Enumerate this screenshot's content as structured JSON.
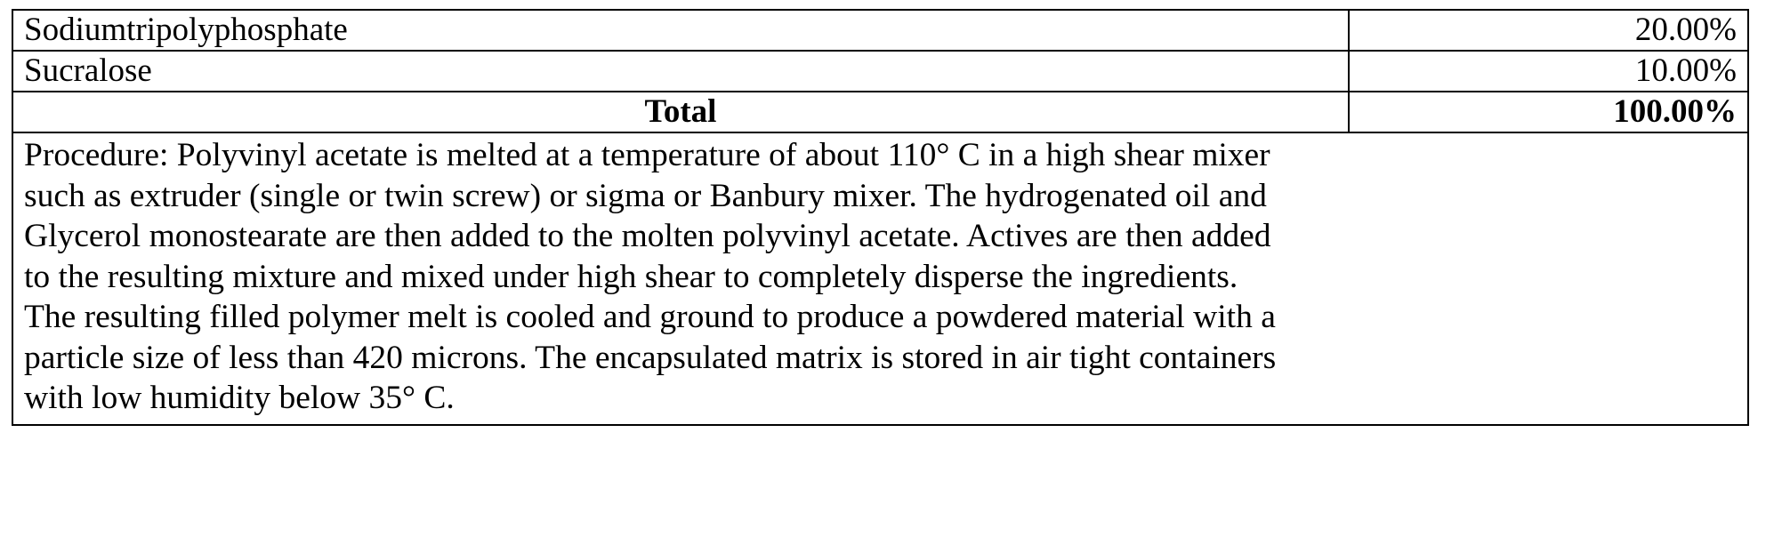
{
  "table": {
    "rows": [
      {
        "ingredient": "Sodiumtripolyphosphate",
        "percent": "20.00%"
      },
      {
        "ingredient": "Sucralose",
        "percent": "10.00%"
      }
    ],
    "total": {
      "label": "Total",
      "percent": "100.00%"
    },
    "procedure_lines": [
      "Procedure: Polyvinyl acetate is melted at a temperature of about 110° C in a high shear mixer",
      "such as extruder (single or twin screw) or sigma or Banbury mixer. The hydrogenated oil and",
      "Glycerol monostearate are then added to the molten polyvinyl acetate. Actives are then added",
      "to the resulting mixture and mixed under high shear to completely disperse the ingredients.",
      "The resulting filled polymer melt is cooled and ground to produce a powdered material with a",
      "particle size of less than 420 microns. The encapsulated matrix is stored in air tight containers",
      "with low humidity below 35° C."
    ]
  }
}
